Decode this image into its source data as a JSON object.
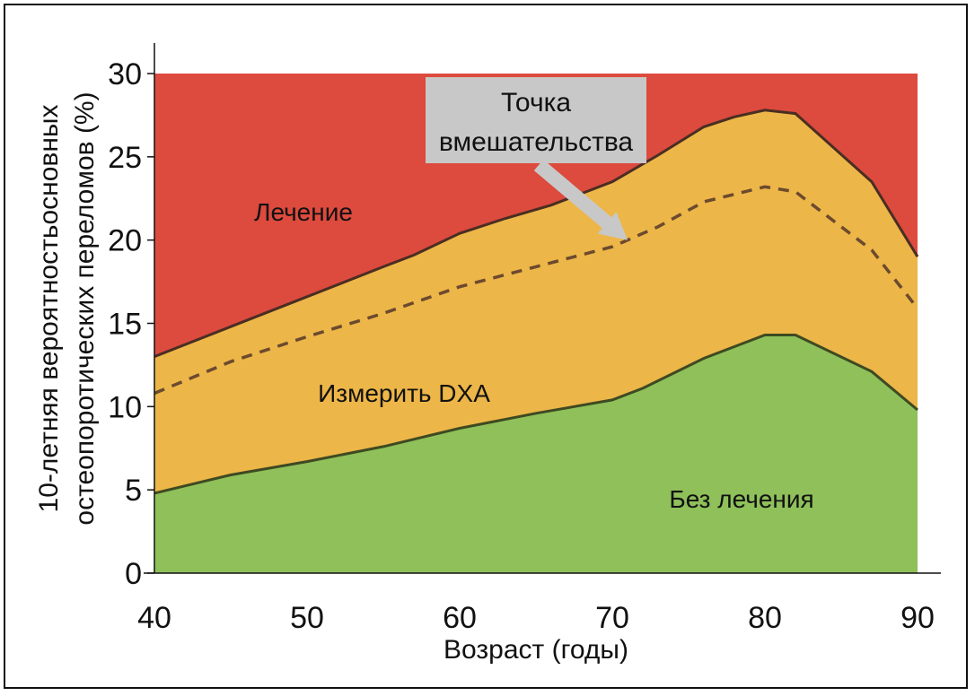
{
  "chart_data": {
    "type": "area",
    "title": "",
    "xlabel": "Возраст (годы)",
    "ylabel_line1": "10-летняя вероятностьосновных",
    "ylabel_line2": "остеопоротических переломов (%)",
    "xlim": [
      40,
      90
    ],
    "ylim": [
      0,
      30
    ],
    "x_ticks": [
      40,
      50,
      60,
      70,
      80,
      90
    ],
    "y_ticks": [
      0,
      5,
      10,
      15,
      20,
      25,
      30
    ],
    "series": [
      {
        "key": "lower",
        "color": "#8fc05a",
        "x": [
          40,
          45,
          50,
          55,
          60,
          65,
          70,
          72,
          76,
          80,
          82,
          87,
          90
        ],
        "y": [
          4.8,
          5.9,
          6.7,
          7.6,
          8.7,
          9.6,
          10.4,
          11.1,
          12.9,
          14.3,
          14.3,
          12.1,
          9.8
        ]
      },
      {
        "key": "upper",
        "color": "#edb648",
        "x": [
          40,
          45,
          50,
          55,
          57,
          60,
          63,
          66,
          70,
          73,
          76,
          78,
          80,
          82,
          87,
          90
        ],
        "y": [
          13.0,
          14.8,
          16.6,
          18.4,
          19.1,
          20.4,
          21.3,
          22.1,
          23.5,
          25.1,
          26.8,
          27.4,
          27.8,
          27.6,
          23.5,
          19.0
        ]
      },
      {
        "key": "dashed",
        "color": "#6b4a2e",
        "x": [
          40,
          45,
          50,
          55,
          60,
          65,
          70,
          73,
          76,
          80,
          82,
          87,
          90
        ],
        "y": [
          10.8,
          12.7,
          14.2,
          15.6,
          17.2,
          18.4,
          19.6,
          20.8,
          22.3,
          23.2,
          22.9,
          19.4,
          15.9
        ]
      }
    ],
    "top_color": "#dd4a3e",
    "labels": {
      "treatment": "Лечение",
      "measure": "Измерить DXA",
      "no_treatment": "Без лечения"
    },
    "annotation": {
      "line1": "Точка",
      "line2": "вмешательства",
      "box_color": "#c8c8c8",
      "arrow_to": [
        71,
        20.0
      ]
    }
  }
}
